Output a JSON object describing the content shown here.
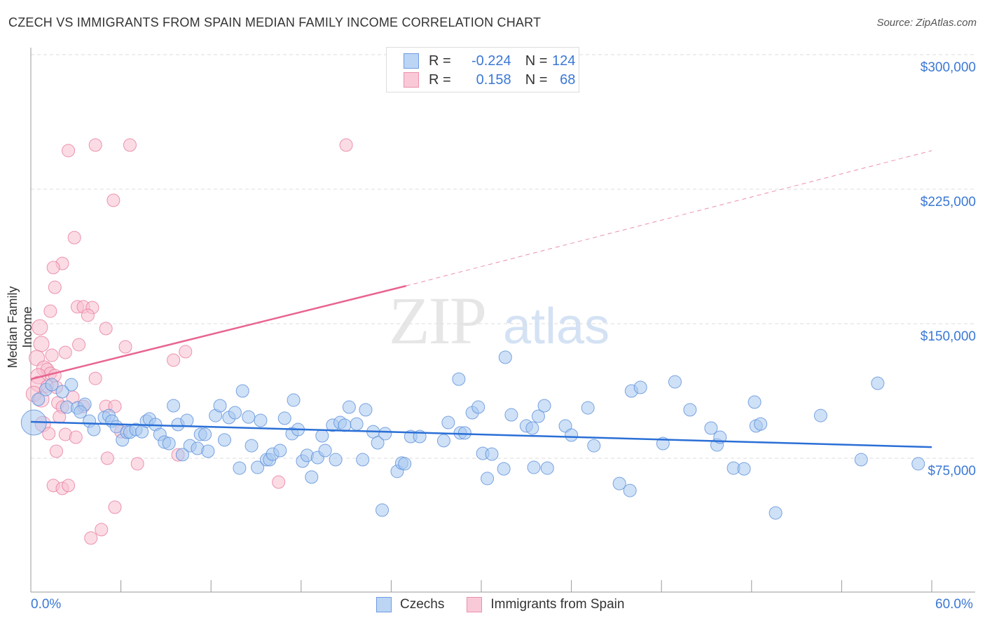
{
  "title": "CZECH VS IMMIGRANTS FROM SPAIN MEDIAN FAMILY INCOME CORRELATION CHART",
  "source": "Source: ZipAtlas.com",
  "legend": {
    "rows": [
      {
        "r_label": "R =",
        "r": "-0.224",
        "n_label": "N =",
        "n": "124",
        "color": "#a8c8f0"
      },
      {
        "r_label": "R =",
        "r": "0.158",
        "n_label": "N =",
        "n": "68",
        "color": "#f7bfd0"
      }
    ]
  },
  "chart_data": {
    "type": "scatter",
    "title": "CZECH VS IMMIGRANTS FROM SPAIN MEDIAN FAMILY INCOME CORRELATION CHART",
    "xlabel": "",
    "ylabel": "Median Family Income",
    "xlim": [
      0,
      60
    ],
    "ylim": [
      0,
      310
    ],
    "x_tick_labels": [
      "0.0%",
      "60.0%"
    ],
    "y_ticks": [
      75,
      150,
      225,
      300
    ],
    "y_tick_labels": [
      "$75,000",
      "$150,000",
      "$225,000",
      "$300,000"
    ],
    "grid": true,
    "legend_placement": "bottom",
    "series": [
      {
        "name": "Czechs",
        "color": "#5b8fd9",
        "fill": "#a8c8f0",
        "trend": [
          [
            0,
            95.3
          ],
          [
            60,
            81.2
          ]
        ],
        "points": [
          [
            0.2,
            94.9
          ],
          [
            0.5,
            107.8
          ],
          [
            1.0,
            113.3
          ],
          [
            1.4,
            116.0
          ],
          [
            2.7,
            116.0
          ],
          [
            2.1,
            112.1
          ],
          [
            2.4,
            103.5
          ],
          [
            3.1,
            103.1
          ],
          [
            3.6,
            105.1
          ],
          [
            3.3,
            100.8
          ],
          [
            3.9,
            95.7
          ],
          [
            4.2,
            91.0
          ],
          [
            4.9,
            97.7
          ],
          [
            5.2,
            98.8
          ],
          [
            5.4,
            95.7
          ],
          [
            5.7,
            92.6
          ],
          [
            6.1,
            85.2
          ],
          [
            6.4,
            89.5
          ],
          [
            6.6,
            89.5
          ],
          [
            7.0,
            91.0
          ],
          [
            7.4,
            89.8
          ],
          [
            7.7,
            95.7
          ],
          [
            7.9,
            96.9
          ],
          [
            8.3,
            93.8
          ],
          [
            8.6,
            88.3
          ],
          [
            8.9,
            84.0
          ],
          [
            9.2,
            83.2
          ],
          [
            9.5,
            104.3
          ],
          [
            9.8,
            93.8
          ],
          [
            10.4,
            96.1
          ],
          [
            10.6,
            82.0
          ],
          [
            11.1,
            80.5
          ],
          [
            10.1,
            77.0
          ],
          [
            11.3,
            88.3
          ],
          [
            11.6,
            88.3
          ],
          [
            11.8,
            78.9
          ],
          [
            12.3,
            98.8
          ],
          [
            12.6,
            104.3
          ],
          [
            12.9,
            85.2
          ],
          [
            13.2,
            97.7
          ],
          [
            13.6,
            100.4
          ],
          [
            13.9,
            69.5
          ],
          [
            14.1,
            112.5
          ],
          [
            14.5,
            98.0
          ],
          [
            14.7,
            82.0
          ],
          [
            15.1,
            69.9
          ],
          [
            15.3,
            96.1
          ],
          [
            15.7,
            74.2
          ],
          [
            15.9,
            74.2
          ],
          [
            16.1,
            77.3
          ],
          [
            16.6,
            79.3
          ],
          [
            16.9,
            97.3
          ],
          [
            17.4,
            88.7
          ],
          [
            17.5,
            107.4
          ],
          [
            17.8,
            91.0
          ],
          [
            18.1,
            73.4
          ],
          [
            18.4,
            76.6
          ],
          [
            18.7,
            64.5
          ],
          [
            19.1,
            75.4
          ],
          [
            19.4,
            87.5
          ],
          [
            19.6,
            79.3
          ],
          [
            20.1,
            93.4
          ],
          [
            20.3,
            74.2
          ],
          [
            20.6,
            94.9
          ],
          [
            20.9,
            93.4
          ],
          [
            21.2,
            103.5
          ],
          [
            21.7,
            94.1
          ],
          [
            22.1,
            74.2
          ],
          [
            22.3,
            102.0
          ],
          [
            22.8,
            89.8
          ],
          [
            23.1,
            83.6
          ],
          [
            23.4,
            46.1
          ],
          [
            23.6,
            88.7
          ],
          [
            24.4,
            67.7
          ],
          [
            24.7,
            72.3
          ],
          [
            24.9,
            71.9
          ],
          [
            25.3,
            87.1
          ],
          [
            25.9,
            87.1
          ],
          [
            27.5,
            84.8
          ],
          [
            27.8,
            94.9
          ],
          [
            28.5,
            119.1
          ],
          [
            28.6,
            89.1
          ],
          [
            28.9,
            89.1
          ],
          [
            29.4,
            100.4
          ],
          [
            29.8,
            103.5
          ],
          [
            30.1,
            77.7
          ],
          [
            30.4,
            63.7
          ],
          [
            30.7,
            77.3
          ],
          [
            31.5,
            69.1
          ],
          [
            31.6,
            131.3
          ],
          [
            32.0,
            99.2
          ],
          [
            33.0,
            93.0
          ],
          [
            33.4,
            91.8
          ],
          [
            33.5,
            69.9
          ],
          [
            33.8,
            98.4
          ],
          [
            34.2,
            104.3
          ],
          [
            34.4,
            69.5
          ],
          [
            35.6,
            93.0
          ],
          [
            36.0,
            87.9
          ],
          [
            37.1,
            103.1
          ],
          [
            37.5,
            82.0
          ],
          [
            39.2,
            60.9
          ],
          [
            39.9,
            57.0
          ],
          [
            40.0,
            112.5
          ],
          [
            40.6,
            114.5
          ],
          [
            42.1,
            83.2
          ],
          [
            42.9,
            117.6
          ],
          [
            43.9,
            102.0
          ],
          [
            45.3,
            91.8
          ],
          [
            45.7,
            82.4
          ],
          [
            45.9,
            86.7
          ],
          [
            46.8,
            69.5
          ],
          [
            47.5,
            69.1
          ],
          [
            48.2,
            106.3
          ],
          [
            48.3,
            93.0
          ],
          [
            48.6,
            94.1
          ],
          [
            49.6,
            44.5
          ],
          [
            52.6,
            98.8
          ],
          [
            55.3,
            74.2
          ],
          [
            56.4,
            116.8
          ],
          [
            59.1,
            71.9
          ]
        ]
      },
      {
        "name": "Immigrants from Spain",
        "color": "#e87a9e",
        "fill": "#f7bfd0",
        "trend": [
          [
            0,
            119.1
          ],
          [
            25,
            171.1
          ],
          [
            60,
            246.5
          ]
        ],
        "points": [
          [
            2.5,
            246.5
          ],
          [
            4.3,
            249.6
          ],
          [
            6.6,
            249.6
          ],
          [
            21.0,
            249.6
          ],
          [
            5.5,
            218.8
          ],
          [
            2.9,
            198.0
          ],
          [
            2.1,
            183.6
          ],
          [
            1.5,
            181.3
          ],
          [
            1.6,
            170.3
          ],
          [
            1.3,
            157.0
          ],
          [
            3.1,
            159.4
          ],
          [
            3.5,
            159.4
          ],
          [
            4.1,
            159.0
          ],
          [
            3.8,
            154.7
          ],
          [
            0.6,
            148.0
          ],
          [
            5.0,
            147.3
          ],
          [
            0.7,
            138.7
          ],
          [
            3.2,
            138.3
          ],
          [
            6.3,
            137.1
          ],
          [
            2.3,
            134.0
          ],
          [
            10.3,
            134.4
          ],
          [
            1.4,
            132.4
          ],
          [
            0.4,
            130.9
          ],
          [
            9.5,
            129.7
          ],
          [
            0.9,
            125.0
          ],
          [
            1.1,
            124.6
          ],
          [
            1.3,
            122.3
          ],
          [
            1.6,
            121.1
          ],
          [
            0.5,
            120.7
          ],
          [
            4.3,
            119.5
          ],
          [
            0.5,
            116.4
          ],
          [
            1.1,
            115.2
          ],
          [
            1.7,
            114.5
          ],
          [
            0.2,
            110.9
          ],
          [
            0.7,
            107.8
          ],
          [
            2.8,
            109.0
          ],
          [
            1.8,
            105.9
          ],
          [
            2.1,
            103.5
          ],
          [
            3.5,
            103.9
          ],
          [
            5.0,
            103.9
          ],
          [
            5.6,
            103.9
          ],
          [
            1.9,
            98.0
          ],
          [
            0.8,
            94.1
          ],
          [
            1.2,
            88.7
          ],
          [
            2.3,
            88.3
          ],
          [
            3.0,
            86.7
          ],
          [
            6.0,
            89.8
          ],
          [
            1.7,
            78.9
          ],
          [
            5.1,
            75.0
          ],
          [
            7.1,
            71.9
          ],
          [
            9.8,
            76.9
          ],
          [
            16.5,
            61.7
          ],
          [
            1.5,
            59.8
          ],
          [
            2.1,
            58.2
          ],
          [
            2.5,
            59.8
          ],
          [
            5.6,
            47.7
          ],
          [
            4.7,
            35.2
          ],
          [
            4.0,
            30.5
          ]
        ]
      }
    ]
  }
}
